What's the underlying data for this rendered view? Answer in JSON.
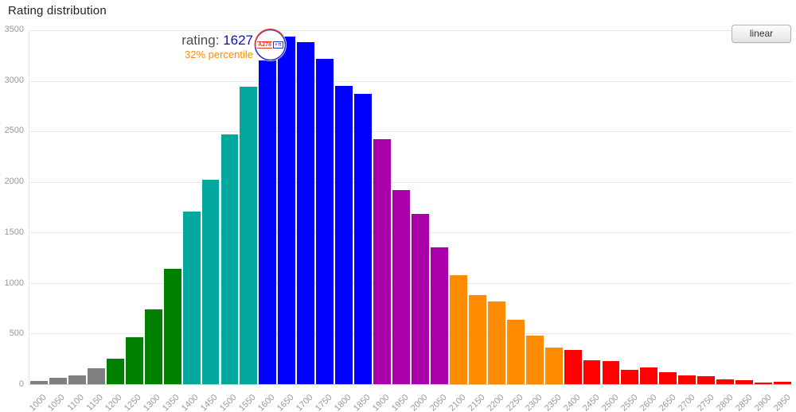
{
  "title": "Rating distribution",
  "scale_button": {
    "label": "linear"
  },
  "annotation": {
    "rating_label": "rating:",
    "rating_value": "1627",
    "percentile": "32% percentile",
    "rating_value_color": "#0b0be0",
    "percentile_color": "#ff8c00",
    "avatar_text_main": "A278",
    "avatar_text_suffix": "+π"
  },
  "chart_data": {
    "type": "bar",
    "title": "Rating distribution",
    "xlabel": "",
    "ylabel": "",
    "ylim": [
      0,
      3500
    ],
    "y_ticks": [
      0,
      500,
      1000,
      1500,
      2000,
      2500,
      3000,
      3500
    ],
    "grid": true,
    "categories": [
      1000,
      1050,
      1100,
      1150,
      1200,
      1250,
      1300,
      1350,
      1400,
      1450,
      1500,
      1550,
      1600,
      1650,
      1700,
      1750,
      1800,
      1850,
      1900,
      1950,
      2000,
      2050,
      2100,
      2150,
      2200,
      2250,
      2300,
      2350,
      2400,
      2450,
      2500,
      2550,
      2600,
      2650,
      2700,
      2750,
      2800,
      2850,
      2900,
      2950
    ],
    "values": [
      30,
      60,
      90,
      160,
      250,
      465,
      740,
      1140,
      1710,
      2020,
      2470,
      2940,
      3200,
      3440,
      3380,
      3220,
      2950,
      2870,
      2420,
      1920,
      1680,
      1350,
      1080,
      880,
      820,
      640,
      480,
      365,
      340,
      235,
      225,
      140,
      165,
      115,
      90,
      75,
      50,
      40,
      15,
      25
    ],
    "bar_color_ranges": [
      {
        "from": 1000,
        "to": 1199,
        "color": "#808080",
        "name": "gray"
      },
      {
        "from": 1200,
        "to": 1399,
        "color": "#008000",
        "name": "green"
      },
      {
        "from": 1400,
        "to": 1599,
        "color": "#03a89e",
        "name": "cyan"
      },
      {
        "from": 1600,
        "to": 1899,
        "color": "#0000ff",
        "name": "blue"
      },
      {
        "from": 1900,
        "to": 2099,
        "color": "#aa00aa",
        "name": "violet"
      },
      {
        "from": 2100,
        "to": 2399,
        "color": "#ff8c00",
        "name": "orange"
      },
      {
        "from": 2400,
        "to": 2999,
        "color": "#ff0000",
        "name": "red"
      }
    ],
    "highlight": {
      "category": 1600,
      "marker": "avatar-circle"
    },
    "legend": null
  }
}
